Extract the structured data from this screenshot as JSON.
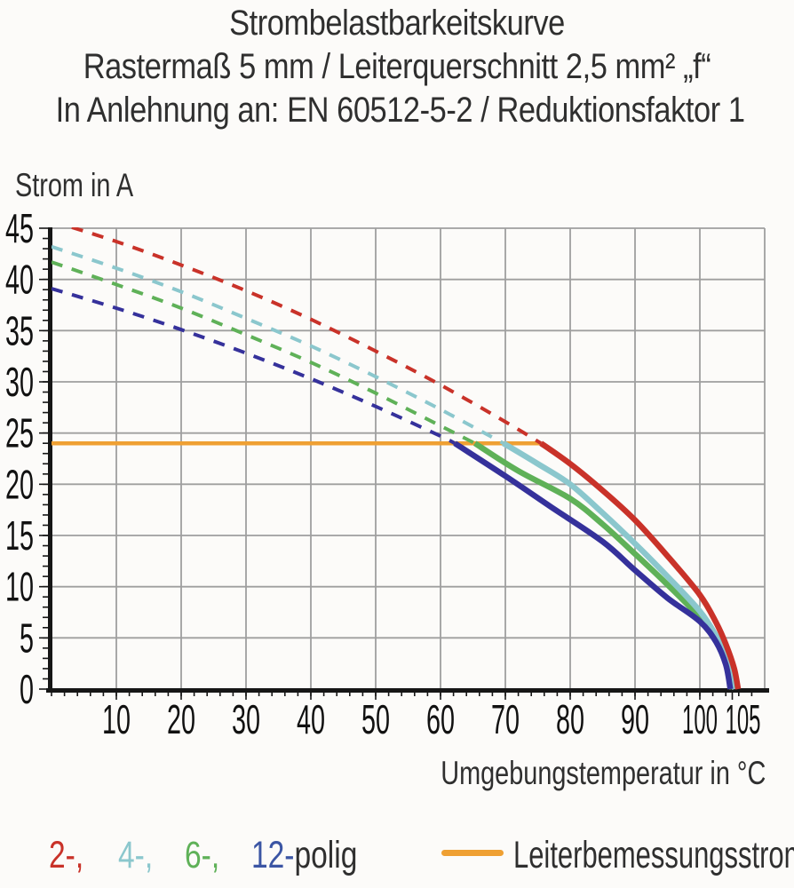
{
  "chart_data": {
    "type": "line",
    "title": "Strombelastbarkeitskurve",
    "subtitle1": "Rastermaß 5 mm / Leiterquerschnitt 2,5 mm² „f“",
    "subtitle2": "In Anlehnung an: EN 60512-5-2 / Reduktionsfaktor 1",
    "ylabel": "Strom in A",
    "xlabel": "Umgebungstemperatur in °C",
    "xlim": [
      0,
      110
    ],
    "ylim": [
      0,
      45
    ],
    "grid": "on",
    "x_axis": {
      "ticks": [
        10,
        20,
        30,
        40,
        50,
        60,
        70,
        80,
        90,
        100,
        105
      ],
      "gridline_ticks": [
        10,
        20,
        30,
        40,
        50,
        60,
        70,
        80,
        90,
        100
      ],
      "minor_step": 2
    },
    "y_axis": {
      "ticks": [
        0,
        5,
        10,
        15,
        20,
        25,
        30,
        35,
        40,
        45
      ],
      "minor_step": 1
    },
    "colors": {
      "grid": "#9f9f9f",
      "axis": "#161616",
      "tick_text": "#111111",
      "text": "#2f2f2f",
      "background": "#fcfbf9"
    },
    "series": [
      {
        "name": "2-polig",
        "color": "#c93229",
        "dashed_points": [
          [
            0,
            45.7
          ],
          [
            10,
            43.7
          ],
          [
            20,
            41.4
          ],
          [
            30,
            38.9
          ],
          [
            40,
            36.1
          ],
          [
            50,
            33.0
          ],
          [
            60,
            29.7
          ],
          [
            70,
            26.1
          ],
          [
            75.5,
            24
          ]
        ],
        "solid_points": [
          [
            75.5,
            24
          ],
          [
            80,
            22.0
          ],
          [
            85,
            19.4
          ],
          [
            90,
            16.5
          ],
          [
            95,
            13.0
          ],
          [
            100,
            9.2
          ],
          [
            102.5,
            6.5
          ],
          [
            104,
            4.4
          ],
          [
            105.3,
            2.0
          ],
          [
            105.9,
            0
          ]
        ]
      },
      {
        "name": "4-polig",
        "color": "#8bc7cd",
        "dashed_points": [
          [
            0,
            43.2
          ],
          [
            10,
            41.1
          ],
          [
            20,
            38.8
          ],
          [
            30,
            36.2
          ],
          [
            40,
            33.5
          ],
          [
            50,
            30.5
          ],
          [
            60,
            27.3
          ],
          [
            69.7,
            24
          ]
        ],
        "solid_points": [
          [
            69.7,
            24
          ],
          [
            75,
            22.0
          ],
          [
            80,
            20.0
          ],
          [
            85,
            17.2
          ],
          [
            90,
            14.2
          ],
          [
            95,
            11.0
          ],
          [
            100,
            7.6
          ],
          [
            102.5,
            5.2
          ],
          [
            104,
            3.2
          ],
          [
            105.4,
            0
          ]
        ]
      },
      {
        "name": "6-polig",
        "color": "#5fb158",
        "dashed_points": [
          [
            0,
            41.7
          ],
          [
            10,
            39.5
          ],
          [
            20,
            37.2
          ],
          [
            30,
            34.6
          ],
          [
            40,
            31.9
          ],
          [
            50,
            28.9
          ],
          [
            60,
            25.7
          ],
          [
            65.3,
            24
          ]
        ],
        "solid_points": [
          [
            65.3,
            24
          ],
          [
            72,
            21.3
          ],
          [
            80,
            18.6
          ],
          [
            85,
            16.1
          ],
          [
            90,
            13.2
          ],
          [
            95,
            10.2
          ],
          [
            100,
            7.0
          ],
          [
            102.5,
            4.9
          ],
          [
            104,
            2.8
          ],
          [
            105.0,
            0
          ]
        ]
      },
      {
        "name": "12-polig",
        "color": "#35319b",
        "dashed_points": [
          [
            0,
            39.1
          ],
          [
            10,
            37.2
          ],
          [
            20,
            35.1
          ],
          [
            30,
            32.8
          ],
          [
            40,
            30.3
          ],
          [
            50,
            27.6
          ],
          [
            60,
            24.7
          ],
          [
            62.2,
            24
          ]
        ],
        "solid_points": [
          [
            62.2,
            24
          ],
          [
            70,
            20.8
          ],
          [
            77,
            17.8
          ],
          [
            85,
            14.4
          ],
          [
            90,
            11.6
          ],
          [
            95,
            8.9
          ],
          [
            100,
            6.6
          ],
          [
            102.5,
            4.6
          ],
          [
            104,
            2.4
          ],
          [
            104.7,
            0
          ]
        ]
      }
    ],
    "rated_current_line": {
      "label": "Leiterbemessungsstrom",
      "value": 24,
      "x_start": 0,
      "x_end": 75.5,
      "color": "#efa033"
    },
    "legend": {
      "items": [
        {
          "text": "2-,",
          "color": "#c93229"
        },
        {
          "text": "4-,",
          "color": "#8bc7cd"
        },
        {
          "text": "6-,",
          "color": "#5fb158"
        },
        {
          "text": "12-",
          "color": "#3b55a4"
        }
      ],
      "suffix": "polig"
    }
  }
}
